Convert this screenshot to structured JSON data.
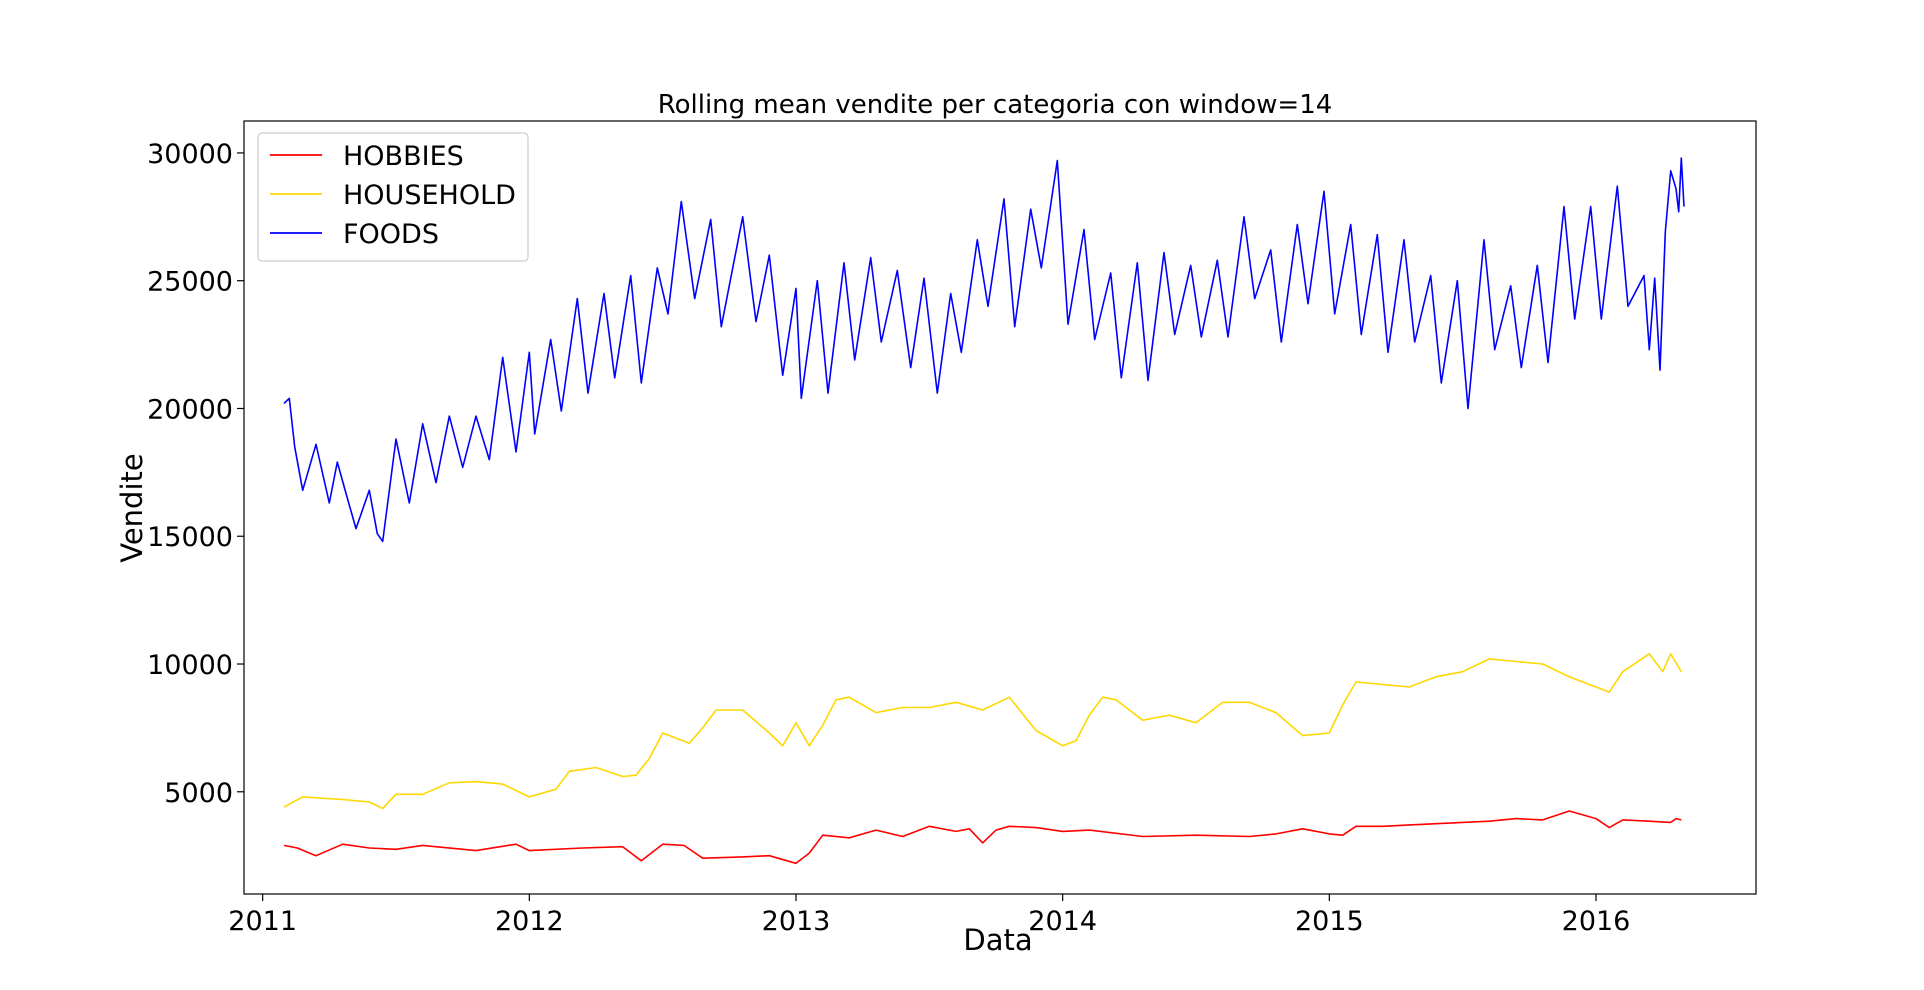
{
  "chart_data": {
    "type": "line",
    "title": "Rolling mean vendite per categoria con window=14",
    "xlabel": "Data",
    "ylabel": "Vendite",
    "xlim": [
      2010.93,
      2016.6
    ],
    "ylim": [
      1000,
      31250
    ],
    "x_ticks": [
      2011,
      2012,
      2013,
      2014,
      2015,
      2016
    ],
    "x_tick_labels": [
      "2011",
      "2012",
      "2013",
      "2014",
      "2015",
      "2016"
    ],
    "y_ticks": [
      5000,
      10000,
      15000,
      20000,
      25000,
      30000
    ],
    "y_tick_labels": [
      "5000",
      "10000",
      "15000",
      "20000",
      "25000",
      "30000"
    ],
    "grid": false,
    "legend": "top-left",
    "series": [
      {
        "name": "HOBBIES",
        "color": "#ff0000",
        "points": [
          [
            2011.08,
            2900
          ],
          [
            2011.13,
            2800
          ],
          [
            2011.2,
            2500
          ],
          [
            2011.3,
            2950
          ],
          [
            2011.4,
            2800
          ],
          [
            2011.5,
            2750
          ],
          [
            2011.6,
            2900
          ],
          [
            2011.8,
            2700
          ],
          [
            2011.95,
            2950
          ],
          [
            2012.0,
            2700
          ],
          [
            2012.2,
            2800
          ],
          [
            2012.35,
            2850
          ],
          [
            2012.42,
            2300
          ],
          [
            2012.5,
            2950
          ],
          [
            2012.58,
            2900
          ],
          [
            2012.65,
            2400
          ],
          [
            2012.8,
            2450
          ],
          [
            2012.9,
            2500
          ],
          [
            2013.0,
            2200
          ],
          [
            2013.05,
            2600
          ],
          [
            2013.1,
            3300
          ],
          [
            2013.2,
            3200
          ],
          [
            2013.3,
            3500
          ],
          [
            2013.4,
            3250
          ],
          [
            2013.5,
            3650
          ],
          [
            2013.6,
            3450
          ],
          [
            2013.65,
            3550
          ],
          [
            2013.7,
            3000
          ],
          [
            2013.75,
            3500
          ],
          [
            2013.8,
            3650
          ],
          [
            2013.9,
            3600
          ],
          [
            2014.0,
            3450
          ],
          [
            2014.1,
            3500
          ],
          [
            2014.3,
            3250
          ],
          [
            2014.5,
            3300
          ],
          [
            2014.7,
            3250
          ],
          [
            2014.8,
            3350
          ],
          [
            2014.9,
            3550
          ],
          [
            2015.0,
            3350
          ],
          [
            2015.05,
            3300
          ],
          [
            2015.1,
            3650
          ],
          [
            2015.2,
            3650
          ],
          [
            2015.4,
            3750
          ],
          [
            2015.6,
            3850
          ],
          [
            2015.7,
            3950
          ],
          [
            2015.8,
            3900
          ],
          [
            2015.9,
            4250
          ],
          [
            2016.0,
            3950
          ],
          [
            2016.05,
            3600
          ],
          [
            2016.1,
            3900
          ],
          [
            2016.2,
            3850
          ],
          [
            2016.28,
            3800
          ],
          [
            2016.3,
            3950
          ],
          [
            2016.32,
            3900
          ]
        ]
      },
      {
        "name": "HOUSEHOLD",
        "color": "#ffd700",
        "points": [
          [
            2011.08,
            4400
          ],
          [
            2011.15,
            4800
          ],
          [
            2011.3,
            4700
          ],
          [
            2011.4,
            4600
          ],
          [
            2011.45,
            4350
          ],
          [
            2011.5,
            4900
          ],
          [
            2011.6,
            4900
          ],
          [
            2011.7,
            5350
          ],
          [
            2011.8,
            5400
          ],
          [
            2011.9,
            5300
          ],
          [
            2012.0,
            4800
          ],
          [
            2012.1,
            5100
          ],
          [
            2012.15,
            5800
          ],
          [
            2012.25,
            5950
          ],
          [
            2012.35,
            5600
          ],
          [
            2012.4,
            5650
          ],
          [
            2012.45,
            6300
          ],
          [
            2012.5,
            7300
          ],
          [
            2012.6,
            6900
          ],
          [
            2012.65,
            7500
          ],
          [
            2012.7,
            8200
          ],
          [
            2012.8,
            8200
          ],
          [
            2012.9,
            7300
          ],
          [
            2012.95,
            6800
          ],
          [
            2013.0,
            7700
          ],
          [
            2013.05,
            6800
          ],
          [
            2013.1,
            7600
          ],
          [
            2013.15,
            8600
          ],
          [
            2013.2,
            8700
          ],
          [
            2013.3,
            8100
          ],
          [
            2013.4,
            8300
          ],
          [
            2013.5,
            8300
          ],
          [
            2013.6,
            8500
          ],
          [
            2013.7,
            8200
          ],
          [
            2013.8,
            8700
          ],
          [
            2013.9,
            7400
          ],
          [
            2014.0,
            6800
          ],
          [
            2014.05,
            7000
          ],
          [
            2014.1,
            8000
          ],
          [
            2014.15,
            8700
          ],
          [
            2014.2,
            8600
          ],
          [
            2014.3,
            7800
          ],
          [
            2014.4,
            8000
          ],
          [
            2014.5,
            7700
          ],
          [
            2014.6,
            8500
          ],
          [
            2014.7,
            8500
          ],
          [
            2014.8,
            8100
          ],
          [
            2014.9,
            7200
          ],
          [
            2015.0,
            7300
          ],
          [
            2015.05,
            8400
          ],
          [
            2015.1,
            9300
          ],
          [
            2015.2,
            9200
          ],
          [
            2015.3,
            9100
          ],
          [
            2015.4,
            9500
          ],
          [
            2015.5,
            9700
          ],
          [
            2015.6,
            10200
          ],
          [
            2015.7,
            10100
          ],
          [
            2015.8,
            10000
          ],
          [
            2015.9,
            9500
          ],
          [
            2016.0,
            9100
          ],
          [
            2016.05,
            8900
          ],
          [
            2016.1,
            9700
          ],
          [
            2016.2,
            10400
          ],
          [
            2016.25,
            9700
          ],
          [
            2016.28,
            10400
          ],
          [
            2016.32,
            9700
          ]
        ]
      },
      {
        "name": "FOODS",
        "color": "#0000ff",
        "points": [
          [
            2011.08,
            20200
          ],
          [
            2011.1,
            20400
          ],
          [
            2011.12,
            18500
          ],
          [
            2011.15,
            16800
          ],
          [
            2011.2,
            18600
          ],
          [
            2011.25,
            16300
          ],
          [
            2011.28,
            17900
          ],
          [
            2011.32,
            16400
          ],
          [
            2011.35,
            15300
          ],
          [
            2011.4,
            16800
          ],
          [
            2011.43,
            15100
          ],
          [
            2011.45,
            14800
          ],
          [
            2011.5,
            18800
          ],
          [
            2011.55,
            16300
          ],
          [
            2011.6,
            19400
          ],
          [
            2011.65,
            17100
          ],
          [
            2011.7,
            19700
          ],
          [
            2011.75,
            17700
          ],
          [
            2011.8,
            19700
          ],
          [
            2011.85,
            18000
          ],
          [
            2011.9,
            22000
          ],
          [
            2011.95,
            18300
          ],
          [
            2012.0,
            22200
          ],
          [
            2012.02,
            19000
          ],
          [
            2012.08,
            22700
          ],
          [
            2012.12,
            19900
          ],
          [
            2012.18,
            24300
          ],
          [
            2012.22,
            20600
          ],
          [
            2012.28,
            24500
          ],
          [
            2012.32,
            21200
          ],
          [
            2012.38,
            25200
          ],
          [
            2012.42,
            21000
          ],
          [
            2012.48,
            25500
          ],
          [
            2012.52,
            23700
          ],
          [
            2012.57,
            28100
          ],
          [
            2012.62,
            24300
          ],
          [
            2012.68,
            27400
          ],
          [
            2012.72,
            23200
          ],
          [
            2012.8,
            27500
          ],
          [
            2012.85,
            23400
          ],
          [
            2012.9,
            26000
          ],
          [
            2012.95,
            21300
          ],
          [
            2013.0,
            24700
          ],
          [
            2013.02,
            20400
          ],
          [
            2013.08,
            25000
          ],
          [
            2013.12,
            20600
          ],
          [
            2013.18,
            25700
          ],
          [
            2013.22,
            21900
          ],
          [
            2013.28,
            25900
          ],
          [
            2013.32,
            22600
          ],
          [
            2013.38,
            25400
          ],
          [
            2013.43,
            21600
          ],
          [
            2013.48,
            25100
          ],
          [
            2013.53,
            20600
          ],
          [
            2013.58,
            24500
          ],
          [
            2013.62,
            22200
          ],
          [
            2013.68,
            26600
          ],
          [
            2013.72,
            24000
          ],
          [
            2013.78,
            28200
          ],
          [
            2013.82,
            23200
          ],
          [
            2013.88,
            27800
          ],
          [
            2013.92,
            25500
          ],
          [
            2013.98,
            29700
          ],
          [
            2014.02,
            23300
          ],
          [
            2014.08,
            27000
          ],
          [
            2014.12,
            22700
          ],
          [
            2014.18,
            25300
          ],
          [
            2014.22,
            21200
          ],
          [
            2014.28,
            25700
          ],
          [
            2014.32,
            21100
          ],
          [
            2014.38,
            26100
          ],
          [
            2014.42,
            22900
          ],
          [
            2014.48,
            25600
          ],
          [
            2014.52,
            22800
          ],
          [
            2014.58,
            25800
          ],
          [
            2014.62,
            22800
          ],
          [
            2014.68,
            27500
          ],
          [
            2014.72,
            24300
          ],
          [
            2014.78,
            26200
          ],
          [
            2014.82,
            22600
          ],
          [
            2014.88,
            27200
          ],
          [
            2014.92,
            24100
          ],
          [
            2014.98,
            28500
          ],
          [
            2015.02,
            23700
          ],
          [
            2015.08,
            27200
          ],
          [
            2015.12,
            22900
          ],
          [
            2015.18,
            26800
          ],
          [
            2015.22,
            22200
          ],
          [
            2015.28,
            26600
          ],
          [
            2015.32,
            22600
          ],
          [
            2015.38,
            25200
          ],
          [
            2015.42,
            21000
          ],
          [
            2015.48,
            25000
          ],
          [
            2015.52,
            20000
          ],
          [
            2015.58,
            26600
          ],
          [
            2015.62,
            22300
          ],
          [
            2015.68,
            24800
          ],
          [
            2015.72,
            21600
          ],
          [
            2015.78,
            25600
          ],
          [
            2015.82,
            21800
          ],
          [
            2015.88,
            27900
          ],
          [
            2015.92,
            23500
          ],
          [
            2015.98,
            27900
          ],
          [
            2016.02,
            23500
          ],
          [
            2016.08,
            28700
          ],
          [
            2016.12,
            24000
          ],
          [
            2016.18,
            25200
          ],
          [
            2016.2,
            22300
          ],
          [
            2016.22,
            25100
          ],
          [
            2016.24,
            21500
          ],
          [
            2016.26,
            26900
          ],
          [
            2016.28,
            29300
          ],
          [
            2016.3,
            28600
          ],
          [
            2016.31,
            27700
          ],
          [
            2016.32,
            29800
          ],
          [
            2016.33,
            27900
          ]
        ]
      }
    ]
  }
}
